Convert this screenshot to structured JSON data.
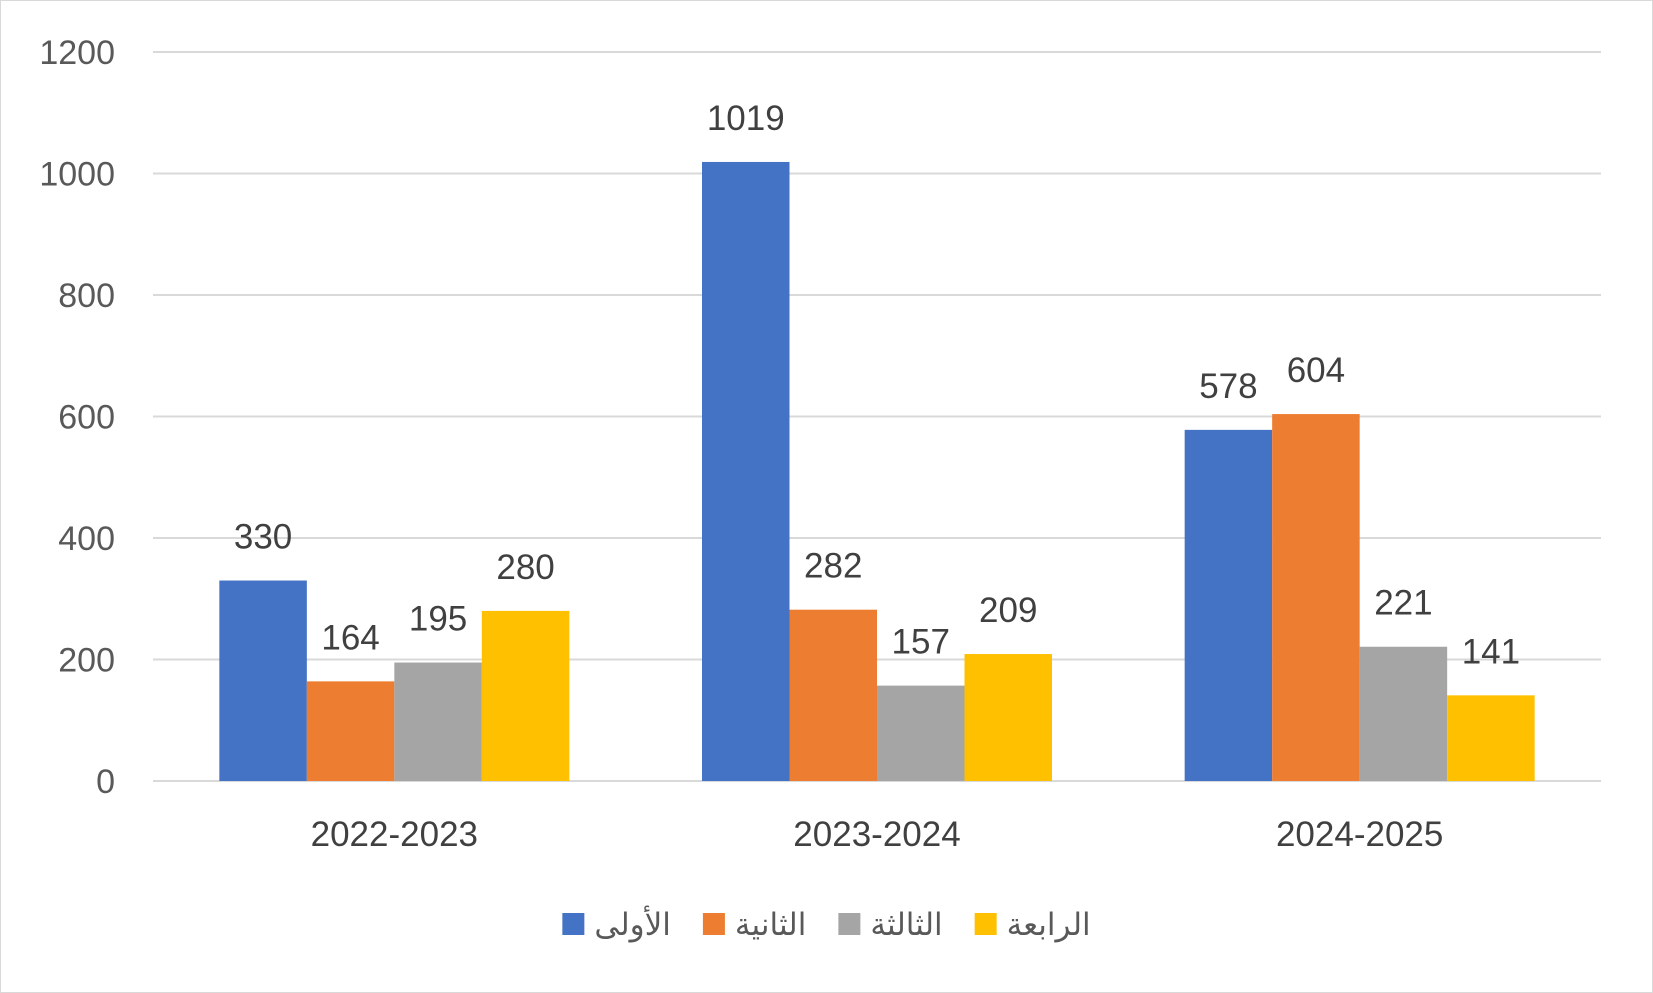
{
  "chart_data": {
    "type": "bar",
    "title": "",
    "xlabel": "",
    "ylabel": "",
    "categories": [
      "2022-2023",
      "2023-2024",
      "2024-2025"
    ],
    "series": [
      {
        "name": "الأولى",
        "color": "#4472C4",
        "values": [
          330,
          1019,
          578
        ]
      },
      {
        "name": "الثانية",
        "color": "#ED7D31",
        "values": [
          164,
          282,
          604
        ]
      },
      {
        "name": "الثالثة",
        "color": "#A5A5A5",
        "values": [
          195,
          157,
          221
        ]
      },
      {
        "name": "الرابعة",
        "color": "#FFC000",
        "values": [
          280,
          209,
          141
        ]
      }
    ],
    "ylim": [
      0,
      1200
    ],
    "yticks": [
      0,
      200,
      400,
      600,
      800,
      1000,
      1200
    ],
    "grid": true,
    "data_labels": true,
    "legend_position": "bottom"
  }
}
